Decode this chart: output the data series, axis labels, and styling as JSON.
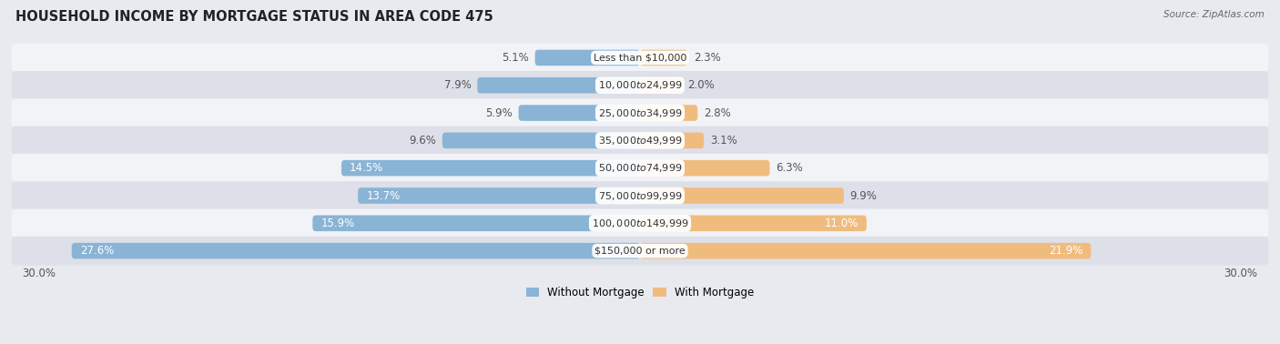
{
  "title": "HOUSEHOLD INCOME BY MORTGAGE STATUS IN AREA CODE 475",
  "source": "Source: ZipAtlas.com",
  "categories": [
    "Less than $10,000",
    "$10,000 to $24,999",
    "$25,000 to $34,999",
    "$35,000 to $49,999",
    "$50,000 to $74,999",
    "$75,000 to $99,999",
    "$100,000 to $149,999",
    "$150,000 or more"
  ],
  "without_mortgage": [
    5.1,
    7.9,
    5.9,
    9.6,
    14.5,
    13.7,
    15.9,
    27.6
  ],
  "with_mortgage": [
    2.3,
    2.0,
    2.8,
    3.1,
    6.3,
    9.9,
    11.0,
    21.9
  ],
  "color_without": "#8ab4d6",
  "color_with": "#f0bc7e",
  "bg_color": "#e8eaf0",
  "row_bg_odd": "#f2f3f7",
  "row_bg_even": "#dde0e8",
  "label_color_outside": "#555555",
  "label_color_inside": "#ffffff",
  "xlim": 30.0,
  "title_fontsize": 10.5,
  "bar_label_fontsize": 8.5,
  "cat_label_fontsize": 8.0,
  "source_fontsize": 7.5,
  "legend_fontsize": 8.5,
  "legend_label_without": "Without Mortgage",
  "legend_label_with": "With Mortgage",
  "center_label_bg": "#ffffff",
  "inside_threshold": 10.0
}
